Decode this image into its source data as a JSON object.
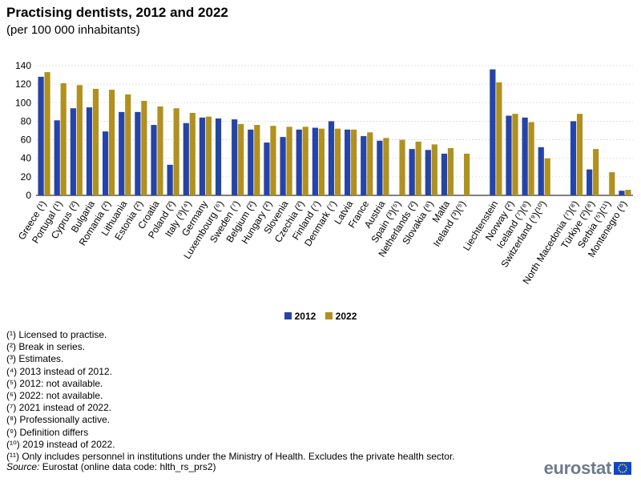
{
  "title": "Practising dentists, 2012 and 2022",
  "subtitle": "(per 100 000 inhabitants)",
  "chart_data": {
    "type": "bar",
    "title": "Practising dentists, 2012 and 2022",
    "subtitle": "(per 100 000 inhabitants)",
    "xlabel": "",
    "ylabel": "",
    "ylim": [
      0,
      140
    ],
    "yticks": [
      0,
      20,
      40,
      60,
      80,
      100,
      120,
      140
    ],
    "grid": true,
    "legend_position": "bottom",
    "categories": [
      "Greece (¹)",
      "Portugal (¹)",
      "Cyprus (²)",
      "Bulgaria",
      "Romania (²)",
      "Lithuania",
      "Estonia (²)",
      "Croatia",
      "Poland (²)",
      "Italy (³)(⁴)",
      "Germany",
      "Luxembourg (⁶)",
      "Sweden (⁷)",
      "Belgium (²)",
      "Hungary (²)",
      "Slovenia",
      "Czechia (²)",
      "Finland (⁷)",
      "Denmark (⁷)",
      "Latvia",
      "France",
      "Austria",
      "Spain (³)(⁵)",
      "Netherlands (²)",
      "Slovakia (⁸)",
      "Malta",
      "Ireland (³)(⁵)",
      "",
      "Liechtenstein",
      "Norway (²)",
      "Iceland (⁷)(⁸)",
      "Switzerland (⁹)(¹⁰)",
      "",
      "North Macedonia (⁷)(⁸)",
      "Türkiye (²)(⁸)",
      "Serbia (⁵)(¹¹)",
      "Montenegro (⁸)"
    ],
    "series": [
      {
        "name": "2012",
        "values": [
          128,
          81,
          94,
          95,
          69,
          90,
          90,
          76,
          33,
          78,
          84,
          83,
          82,
          71,
          57,
          63,
          71,
          73,
          80,
          71,
          64,
          59,
          null,
          50,
          49,
          45,
          null,
          null,
          136,
          86,
          84,
          52,
          null,
          80,
          28,
          null,
          5
        ]
      },
      {
        "name": "2022",
        "values": [
          133,
          121,
          119,
          115,
          114,
          109,
          102,
          96,
          94,
          89,
          85,
          null,
          77,
          76,
          75,
          74,
          74,
          72,
          72,
          71,
          68,
          62,
          60,
          58,
          55,
          51,
          45,
          null,
          122,
          88,
          79,
          40,
          null,
          88,
          50,
          25,
          6
        ]
      }
    ],
    "colors": {
      "2012": "#2644a7",
      "2022": "#b09120"
    }
  },
  "legend": {
    "s2012": "2012",
    "s2022": "2022"
  },
  "footnotes": [
    "(¹) Licensed to practise.",
    "(²) Break in series.",
    "(³) Estimates.",
    "(⁴) 2013 instead of 2012.",
    "(⁵) 2012: not available.",
    "(⁶) 2022: not available.",
    "(⁷) 2021 instead of 2022.",
    "(⁸) Professionally active.",
    "(⁹) Definition differs",
    "(¹⁰) 2019 instead of 2022.",
    "(¹¹) Only includes personnel in institutions under the Ministry of Health. Excludes the private health sector."
  ],
  "source": {
    "label": "Source:",
    "text": "Eurostat (online data code: hlth_rs_prs2)"
  },
  "brand": {
    "name": "eurostat"
  }
}
